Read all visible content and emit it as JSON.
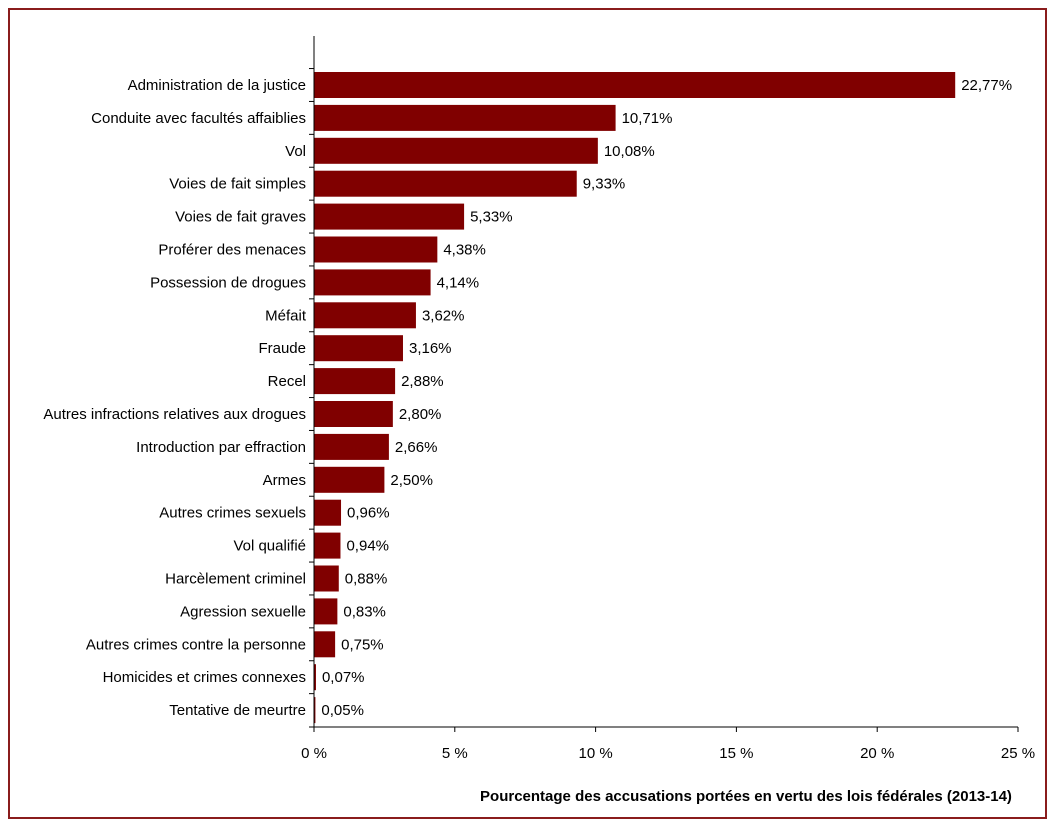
{
  "chart_data": {
    "type": "bar",
    "orientation": "horizontal",
    "categories": [
      "Administration de la justice",
      "Conduite avec facultés affaiblies",
      "Vol",
      "Voies de fait simples",
      "Voies de fait graves",
      "Proférer des menaces",
      "Possession de drogues",
      "Méfait",
      "Fraude",
      "Recel",
      "Autres infractions relatives aux drogues",
      "Introduction par effraction",
      "Armes",
      "Autres crimes sexuels",
      "Vol qualifié",
      "Harcèlement criminel",
      "Agression sexuelle",
      "Autres crimes contre la personne",
      "Homicides et crimes connexes",
      "Tentative de meurtre"
    ],
    "values": [
      22.77,
      10.71,
      10.08,
      9.33,
      5.33,
      4.38,
      4.14,
      3.62,
      3.16,
      2.88,
      2.8,
      2.66,
      2.5,
      0.96,
      0.94,
      0.88,
      0.83,
      0.75,
      0.07,
      0.05
    ],
    "value_labels": [
      "22,77%",
      "10,71%",
      "10,08%",
      "9,33%",
      "5,33%",
      "4,38%",
      "4,14%",
      "3,62%",
      "3,16%",
      "2,88%",
      "2,80%",
      "2,66%",
      "2,50%",
      "0,96%",
      "0,94%",
      "0,88%",
      "0,83%",
      "0,75%",
      "0,07%",
      "0,05%"
    ],
    "xlabel": "Pourcentage des accusations portées en vertu des lois fédérales (2013-14)",
    "xlim": [
      0,
      25
    ],
    "xticks": [
      0,
      5,
      10,
      15,
      20,
      25
    ],
    "xtick_labels": [
      "0 %",
      "5 %",
      "10 %",
      "15 %",
      "20 %",
      "25 %"
    ],
    "grid": false,
    "legend": "none",
    "bar_color": "#800000",
    "frame_color": "#8a1c1c"
  }
}
